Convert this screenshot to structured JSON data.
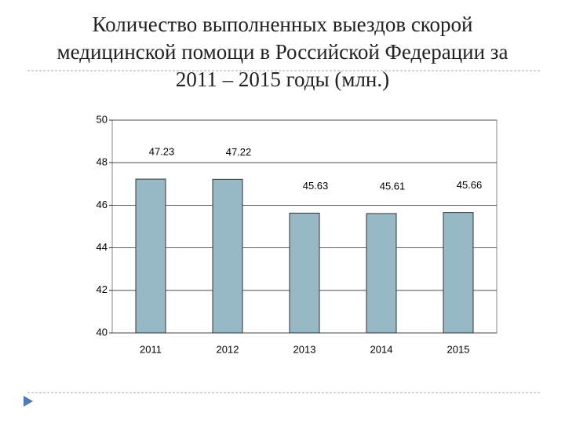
{
  "chart_data": {
    "type": "bar",
    "title": "Количество выполненных выездов скорой медицинской помощи в Российской Федерации за 2011 – 2015 годы (млн.)",
    "categories": [
      "2011",
      "2012",
      "2013",
      "2014",
      "2015"
    ],
    "values": [
      47.23,
      47.22,
      45.63,
      45.61,
      45.66
    ],
    "color": "#97b9c5",
    "ylim": [
      40,
      50
    ],
    "yticks": [
      40,
      42,
      44,
      46,
      48,
      50
    ],
    "grid": true
  }
}
